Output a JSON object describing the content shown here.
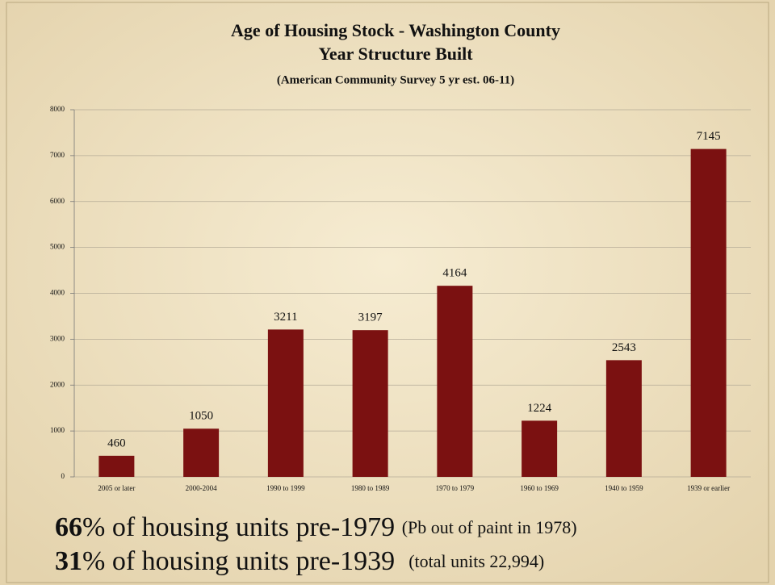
{
  "chart_data": {
    "type": "bar",
    "title": "Age of Housing Stock - Washington County",
    "subtitle": "Year Structure Built",
    "source": "(American Community Survey 5 yr est. 06-11)",
    "categories": [
      "2005 or later",
      "2000-2004",
      "1990 to 1999",
      "1980 to 1989",
      "1970 to 1979",
      "1960 to 1969",
      "1940 to 1959",
      "1939 or earlier"
    ],
    "values": [
      460,
      1050,
      3211,
      3197,
      4164,
      1224,
      2543,
      7145
    ],
    "color": "#7b1111",
    "ylim": [
      0,
      8000
    ],
    "yticks": [
      0,
      1000,
      2000,
      3000,
      4000,
      5000,
      6000,
      7000,
      8000
    ],
    "grid": true,
    "annotations": [
      {
        "bold": "66",
        "text": "% of housing units pre-1979",
        "note": "(Pb out of paint in 1978)"
      },
      {
        "bold": "31",
        "text": "% of housing units pre-1939",
        "note": "(total units 22,994)"
      }
    ]
  }
}
